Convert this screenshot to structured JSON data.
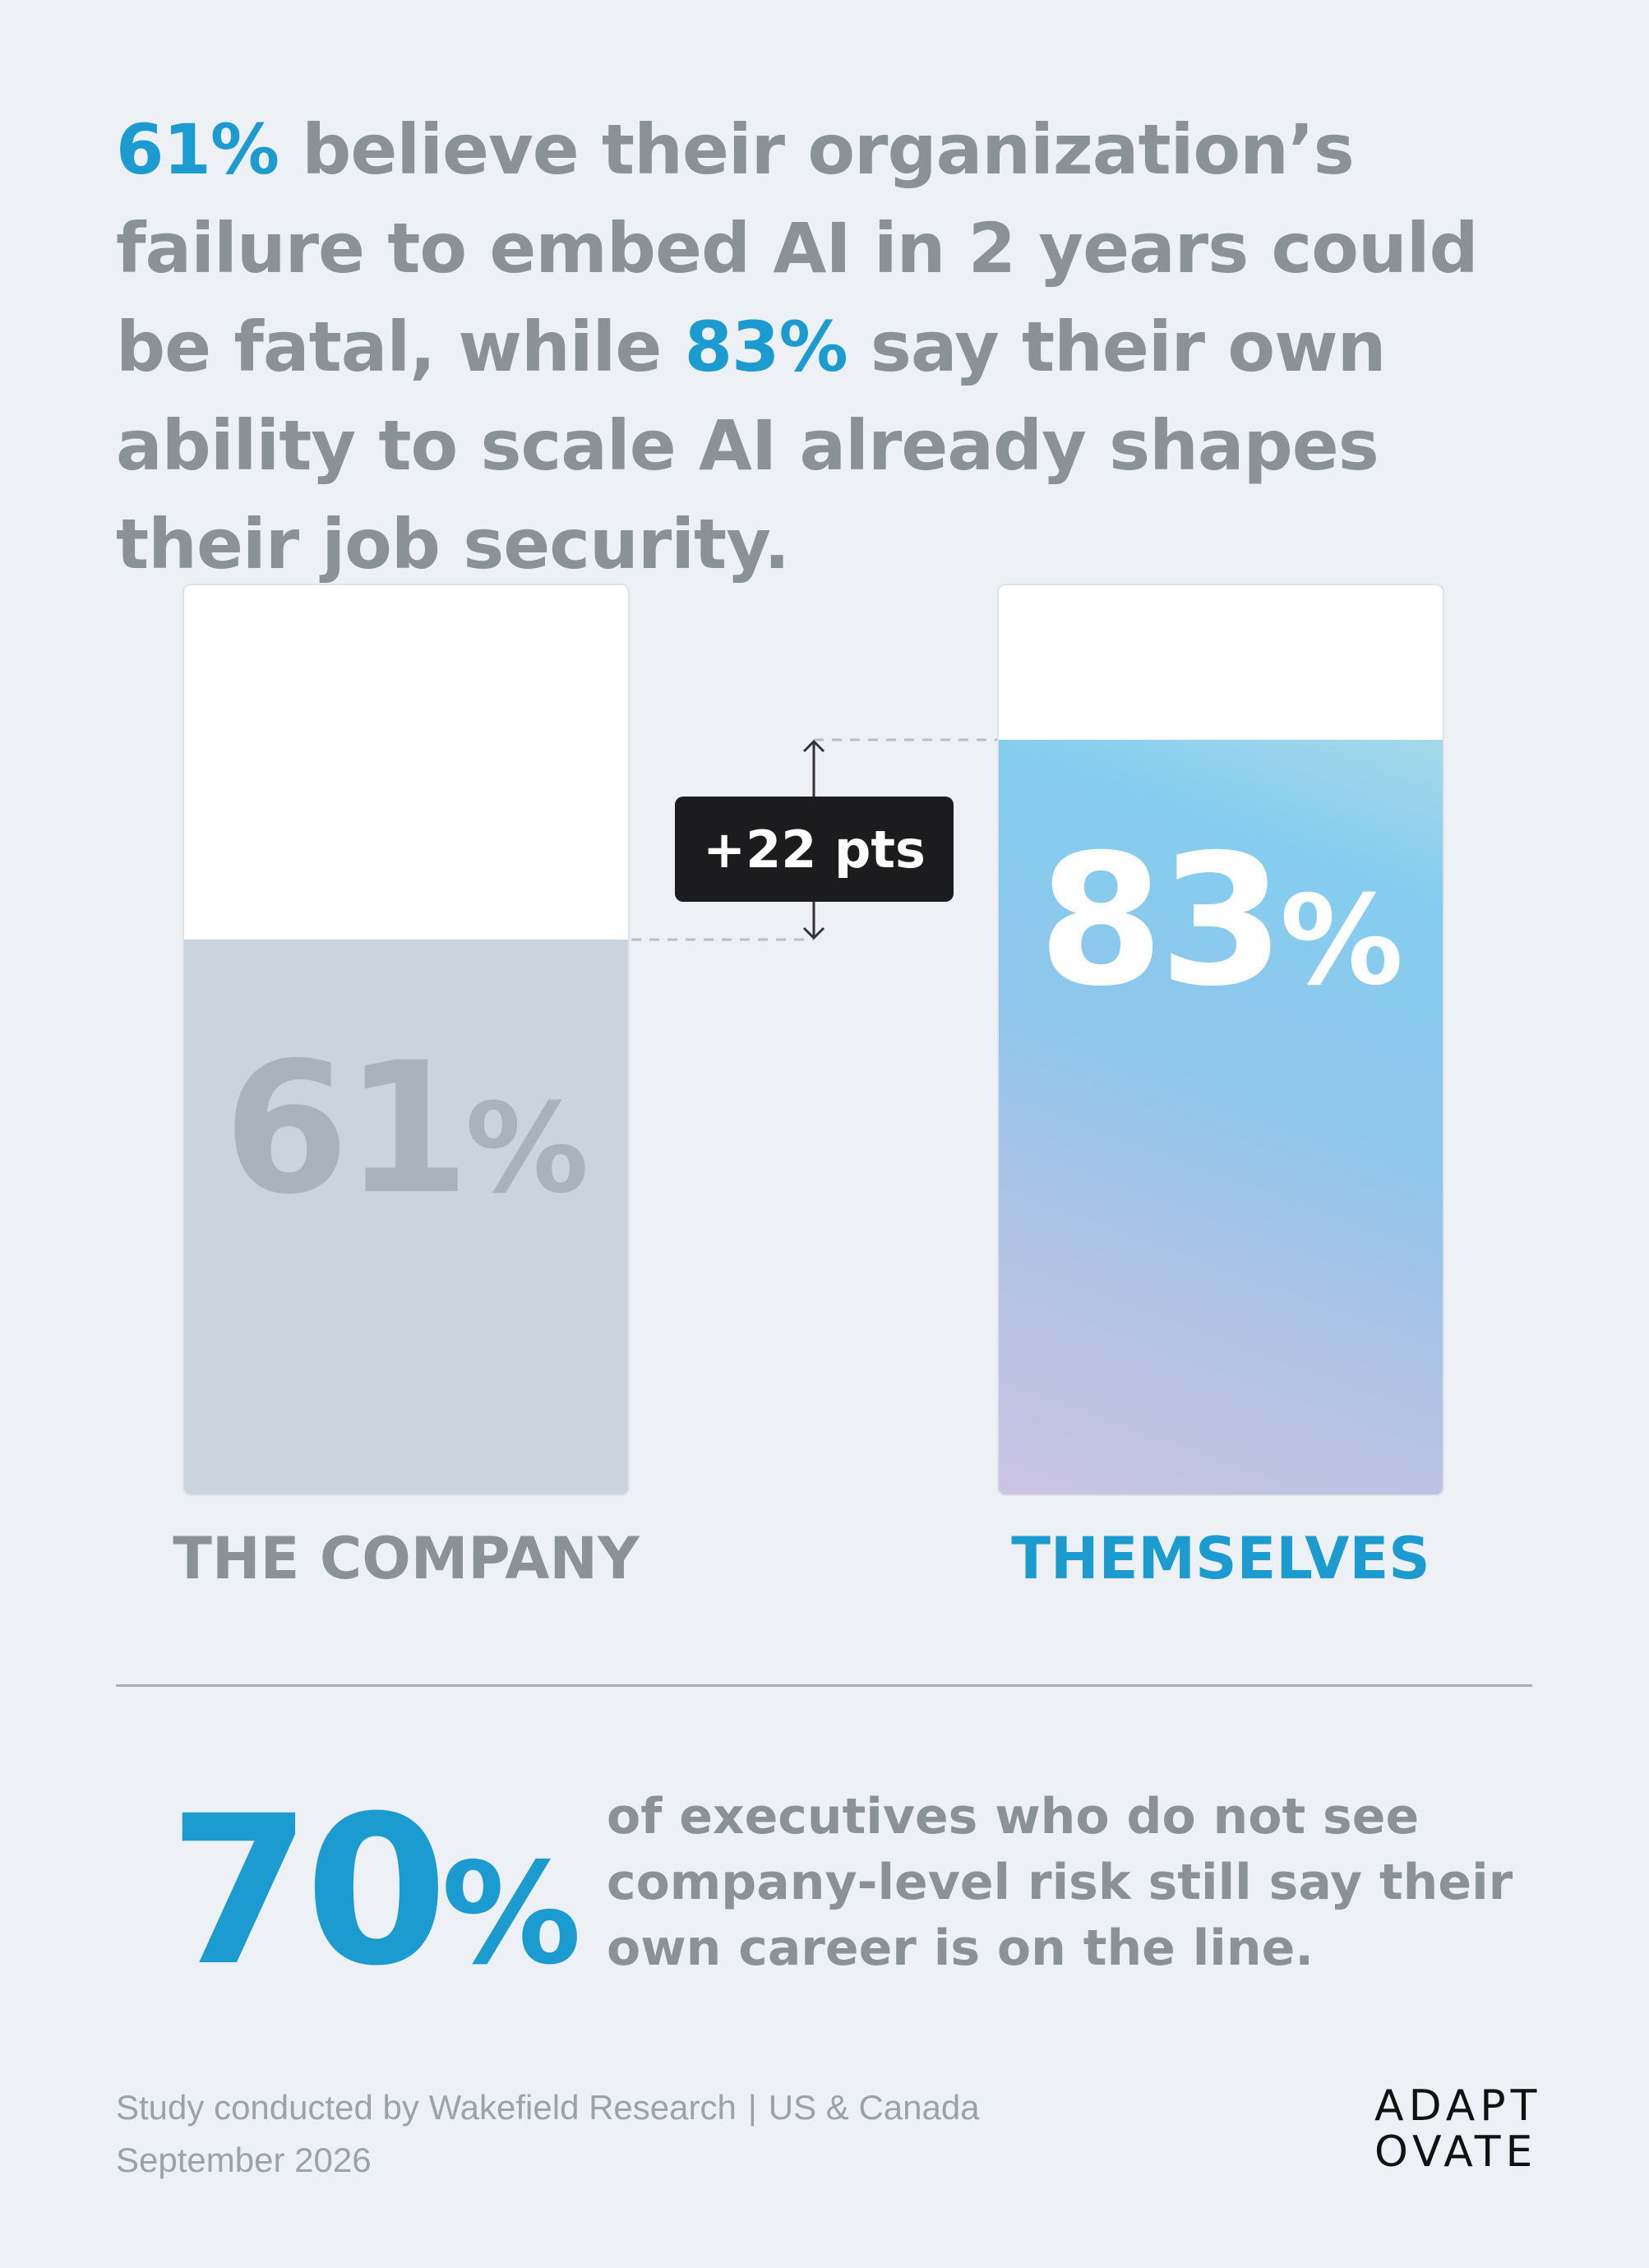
{
  "headline": {
    "stat1": "61%",
    "text1": " believe their organization’s failure to embed AI in 2 years could be fatal, while ",
    "stat2": "83%",
    "text2": " say their own ability to scale AI already shapes their job security."
  },
  "chart_data": {
    "type": "bar",
    "categories": [
      "THE COMPANY",
      "THEMSELVES"
    ],
    "values": [
      61,
      83
    ],
    "value_labels": [
      {
        "number": "61",
        "unit": "%"
      },
      {
        "number": "83",
        "unit": "%"
      }
    ],
    "ylim": [
      0,
      100
    ],
    "difference_label": "+22 pts",
    "colors": {
      "company": "#cbd4dd",
      "themselves": "#84cdee",
      "accent": "#1b9bd0"
    }
  },
  "stat": {
    "number": "70",
    "unit": "%",
    "text": "of executives who do not see company-level risk still say their own career is on the line."
  },
  "footer": {
    "source": "Study conducted by Wakefield Research",
    "separator": "|",
    "region": "US & Canada",
    "date": "September 2026"
  },
  "logo": {
    "line1": "ADAPT",
    "line2": "OVATE"
  }
}
